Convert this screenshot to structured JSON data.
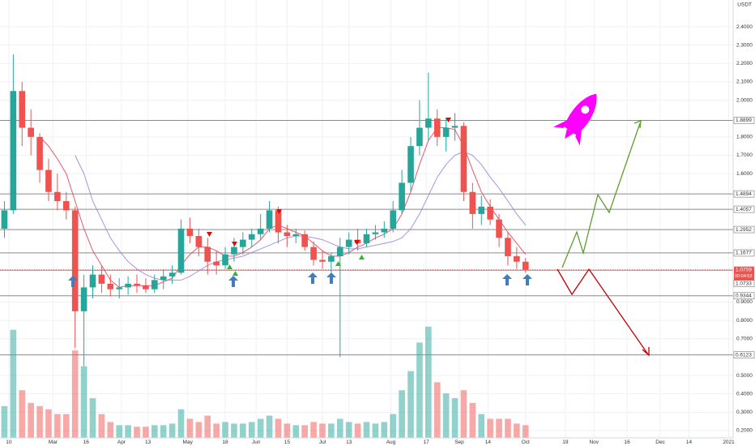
{
  "chart_data": {
    "type": "candlestick",
    "unit": "USDT",
    "countdown": "00:04:53",
    "up_color": "#26a69a",
    "down_color": "#ef5350",
    "grid": true,
    "xlim": [
      "2020-02-06",
      "2021-01-03"
    ],
    "xticks": [
      {
        "value": "2020-02-10",
        "label": "10"
      },
      {
        "value": "2020-03-01",
        "label": "Mar"
      },
      {
        "value": "2020-03-16",
        "label": "16"
      },
      {
        "value": "2020-04-01",
        "label": "Apr"
      },
      {
        "value": "2020-04-13",
        "label": "13"
      },
      {
        "value": "2020-05-01",
        "label": "May"
      },
      {
        "value": "2020-05-18",
        "label": "18"
      },
      {
        "value": "2020-06-01",
        "label": "Jun"
      },
      {
        "value": "2020-06-15",
        "label": "15"
      },
      {
        "value": "2020-07-01",
        "label": "Jul"
      },
      {
        "value": "2020-07-13",
        "label": "13"
      },
      {
        "value": "2020-08-01",
        "label": "Aug"
      },
      {
        "value": "2020-08-17",
        "label": "17"
      },
      {
        "value": "2020-09-01",
        "label": "Sep"
      },
      {
        "value": "2020-09-14",
        "label": "14"
      },
      {
        "value": "2020-10-01",
        "label": "Oct"
      },
      {
        "value": "2020-10-19",
        "label": "19"
      },
      {
        "value": "2020-11-01",
        "label": "Nov"
      },
      {
        "value": "2020-11-16",
        "label": "16"
      },
      {
        "value": "2020-12-01",
        "label": "Dec"
      },
      {
        "value": "2020-12-14",
        "label": "14"
      },
      {
        "value": "2021-01-01",
        "label": "2021"
      }
    ],
    "ylim": [
      0.16,
      2.546
    ],
    "yticks": [
      {
        "value": 2.4,
        "label": "2.4000"
      },
      {
        "value": 2.3,
        "label": "2.3000"
      },
      {
        "value": 2.2,
        "label": "2.2000"
      },
      {
        "value": 2.1,
        "label": "2.1000"
      },
      {
        "value": 2.0,
        "label": "2.0000"
      },
      {
        "value": 1.8,
        "label": "1.8000"
      },
      {
        "value": 1.7,
        "label": "1.7000"
      },
      {
        "value": 1.6,
        "label": "1.6000"
      },
      {
        "value": 0.9,
        "label": "0.9000"
      },
      {
        "value": 0.8,
        "label": "0.8000"
      },
      {
        "value": 0.7,
        "label": "0.7000"
      },
      {
        "value": 0.5,
        "label": "0.5000"
      },
      {
        "value": 0.4,
        "label": "0.4000"
      },
      {
        "value": 0.3,
        "label": "0.3000"
      },
      {
        "value": 0.2,
        "label": "0.2000"
      }
    ],
    "y2lim": [
      0,
      100
    ],
    "levels": [
      {
        "value": 1.8899,
        "label": "1.8899"
      },
      {
        "value": 1.4894,
        "label": "1.4894"
      },
      {
        "value": 1.4057,
        "label": "1.4057"
      },
      {
        "value": 1.2952,
        "label": "1.2952"
      },
      {
        "value": 1.1677,
        "label": "1.1677"
      },
      {
        "value": 1.0733,
        "label": "1.0733"
      },
      {
        "value": 0.9344,
        "label": "0.9344"
      },
      {
        "value": 0.6123,
        "label": "0.6123"
      }
    ],
    "last_price": {
      "value": 1.0759,
      "label": "1.0759"
    },
    "x": [
      "2020-02-08",
      "2020-02-12",
      "2020-02-16",
      "2020-02-20",
      "2020-02-24",
      "2020-02-28",
      "2020-03-03",
      "2020-03-07",
      "2020-03-11",
      "2020-03-15",
      "2020-03-19",
      "2020-03-23",
      "2020-03-27",
      "2020-03-31",
      "2020-04-04",
      "2020-04-08",
      "2020-04-12",
      "2020-04-16",
      "2020-04-20",
      "2020-04-24",
      "2020-04-28",
      "2020-05-02",
      "2020-05-06",
      "2020-05-10",
      "2020-05-14",
      "2020-05-18",
      "2020-05-22",
      "2020-05-26",
      "2020-05-30",
      "2020-06-03",
      "2020-06-07",
      "2020-06-11",
      "2020-06-15",
      "2020-06-19",
      "2020-06-23",
      "2020-06-27",
      "2020-07-01",
      "2020-07-05",
      "2020-07-09",
      "2020-07-13",
      "2020-07-17",
      "2020-07-21",
      "2020-07-25",
      "2020-07-29",
      "2020-08-02",
      "2020-08-06",
      "2020-08-10",
      "2020-08-14",
      "2020-08-18",
      "2020-08-22",
      "2020-08-26",
      "2020-08-30",
      "2020-09-03",
      "2020-09-07",
      "2020-09-11",
      "2020-09-15",
      "2020-09-19",
      "2020-09-23",
      "2020-09-27",
      "2020-10-01"
    ],
    "open": [
      1.3,
      1.4,
      2.05,
      1.85,
      1.8,
      1.62,
      1.5,
      1.45,
      1.4,
      0.85,
      0.98,
      1.05,
      1.0,
      0.97,
      0.98,
      1.0,
      0.99,
      0.97,
      1.02,
      1.04,
      1.06,
      1.3,
      1.26,
      1.2,
      1.12,
      1.1,
      1.16,
      1.2,
      1.24,
      1.27,
      1.3,
      1.4,
      1.28,
      1.26,
      1.27,
      1.2,
      1.13,
      1.12,
      1.15,
      1.2,
      1.24,
      1.22,
      1.27,
      1.28,
      1.3,
      1.4,
      1.55,
      1.75,
      1.85,
      1.9,
      1.8,
      1.85,
      1.86,
      1.5,
      1.38,
      1.42,
      1.35,
      1.25,
      1.15,
      1.12
    ],
    "high": [
      1.45,
      2.25,
      2.1,
      1.95,
      1.82,
      1.68,
      1.6,
      1.5,
      1.42,
      1.05,
      1.1,
      1.1,
      1.05,
      1.03,
      1.04,
      1.05,
      1.03,
      1.05,
      1.08,
      1.1,
      1.35,
      1.36,
      1.3,
      1.25,
      1.18,
      1.2,
      1.25,
      1.28,
      1.3,
      1.38,
      1.45,
      1.42,
      1.32,
      1.3,
      1.29,
      1.23,
      1.18,
      1.17,
      1.25,
      1.28,
      1.3,
      1.3,
      1.32,
      1.34,
      1.45,
      1.62,
      1.8,
      2.0,
      2.15,
      1.95,
      1.9,
      1.93,
      1.88,
      1.55,
      1.48,
      1.46,
      1.38,
      1.28,
      1.2,
      1.14
    ],
    "low": [
      1.25,
      1.38,
      1.75,
      1.7,
      1.55,
      1.45,
      1.4,
      1.35,
      0.65,
      0.55,
      0.92,
      0.95,
      0.93,
      0.92,
      0.94,
      0.95,
      0.95,
      0.95,
      0.97,
      1.0,
      1.05,
      1.22,
      1.15,
      1.05,
      1.05,
      1.08,
      1.12,
      1.16,
      1.2,
      1.24,
      1.28,
      1.22,
      1.2,
      1.22,
      1.18,
      1.1,
      1.08,
      1.06,
      0.6,
      1.16,
      1.18,
      1.2,
      1.24,
      1.25,
      1.28,
      1.38,
      1.5,
      1.7,
      1.78,
      1.75,
      1.72,
      1.78,
      1.45,
      1.3,
      1.32,
      1.32,
      1.2,
      1.1,
      1.08,
      1.06
    ],
    "close": [
      1.4,
      2.05,
      1.85,
      1.8,
      1.62,
      1.5,
      1.45,
      1.4,
      0.85,
      0.98,
      1.05,
      1.0,
      0.97,
      0.98,
      1.0,
      0.99,
      0.97,
      1.02,
      1.04,
      1.06,
      1.3,
      1.26,
      1.2,
      1.12,
      1.1,
      1.16,
      1.2,
      1.24,
      1.27,
      1.3,
      1.4,
      1.28,
      1.26,
      1.27,
      1.2,
      1.13,
      1.12,
      1.15,
      1.2,
      1.24,
      1.22,
      1.27,
      1.28,
      1.3,
      1.4,
      1.55,
      1.75,
      1.85,
      1.9,
      1.8,
      1.85,
      1.86,
      1.5,
      1.38,
      1.42,
      1.35,
      1.25,
      1.15,
      1.12,
      1.0759
    ],
    "volume": [
      20,
      68,
      30,
      22,
      20,
      18,
      15,
      15,
      55,
      45,
      25,
      15,
      10,
      8,
      8,
      7,
      7,
      8,
      8,
      9,
      18,
      12,
      10,
      14,
      9,
      10,
      9,
      9,
      10,
      12,
      14,
      12,
      9,
      8,
      8,
      10,
      9,
      9,
      12,
      10,
      9,
      10,
      9,
      10,
      15,
      30,
      42,
      60,
      70,
      35,
      28,
      25,
      30,
      22,
      15,
      12,
      12,
      12,
      9,
      8
    ],
    "overlays": [
      {
        "color": "#e53950",
        "values": [
          null,
          null,
          null,
          null,
          1.8,
          1.75,
          1.68,
          1.6,
          1.45,
          1.3,
          1.18,
          1.1,
          1.02,
          0.98,
          0.99,
          0.99,
          0.99,
          0.99,
          1.01,
          1.03,
          1.1,
          1.16,
          1.2,
          1.2,
          1.18,
          1.15,
          1.15,
          1.17,
          1.2,
          1.24,
          1.3,
          1.32,
          1.3,
          1.28,
          1.26,
          1.22,
          1.18,
          1.15,
          1.15,
          1.17,
          1.2,
          1.22,
          1.25,
          1.27,
          1.3,
          1.38,
          1.5,
          1.65,
          1.78,
          1.85,
          1.85,
          1.84,
          1.75,
          1.62,
          1.5,
          1.42,
          1.35,
          1.28,
          1.22,
          1.16
        ]
      },
      {
        "color": "#9c7fd6",
        "values": [
          null,
          null,
          null,
          null,
          null,
          null,
          null,
          null,
          1.7,
          1.6,
          1.45,
          1.35,
          1.25,
          1.18,
          1.12,
          1.08,
          1.05,
          1.03,
          1.02,
          1.02,
          1.02,
          1.04,
          1.07,
          1.1,
          1.12,
          1.13,
          1.14,
          1.15,
          1.17,
          1.19,
          1.21,
          1.23,
          1.25,
          1.26,
          1.26,
          1.25,
          1.24,
          1.22,
          1.2,
          1.19,
          1.19,
          1.2,
          1.21,
          1.22,
          1.23,
          1.25,
          1.3,
          1.38,
          1.48,
          1.58,
          1.65,
          1.7,
          1.72,
          1.7,
          1.65,
          1.58,
          1.52,
          1.45,
          1.38,
          1.32
        ]
      }
    ]
  }
}
